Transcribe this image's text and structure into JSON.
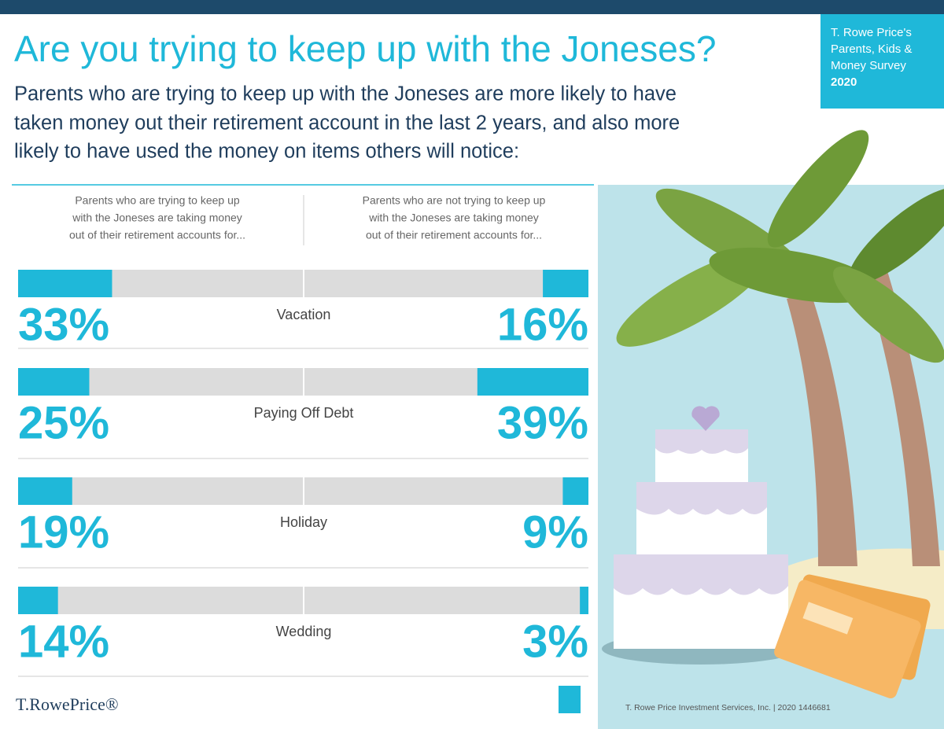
{
  "header": {
    "title": "Are you trying to keep up with the Joneses?",
    "subtitle": [
      "Parents who are trying to keep up with the Joneses are more likely to have",
      "taken money out their retirement account in the last 2 years, and also more",
      "likely to have used the money on items others will notice:"
    ],
    "badge": [
      "T. Rowe Price's",
      "Parents, Kids &",
      "Money Survey"
    ],
    "badge_year": "2020"
  },
  "chart_data": {
    "type": "butterfly",
    "categories": [
      "Vacation",
      "Paying Off Debt",
      "Holiday",
      "Wedding"
    ],
    "series": [
      {
        "name": [
          "Parents who are trying to keep up",
          "with the Joneses are taking money",
          "out of their retirement accounts for..."
        ],
        "color": "#1fb8d9",
        "values": [
          33,
          25,
          19,
          14
        ],
        "value_labels": [
          "33%",
          "25%",
          "19%",
          "14%"
        ]
      },
      {
        "name": [
          "Parents who are not trying to keep up",
          "with the Joneses are taking money",
          "out of their retirement accounts for..."
        ],
        "color": "#1fb8d9",
        "values": [
          16,
          39,
          9,
          3
        ],
        "value_labels": [
          "16%",
          "39%",
          "9%",
          "3%"
        ]
      }
    ],
    "xlim": [
      0,
      100
    ]
  },
  "footer": {
    "logo": "T.RowePrice®",
    "credit": "T. Rowe Price Investment Services, Inc. | 2020 1446681"
  }
}
